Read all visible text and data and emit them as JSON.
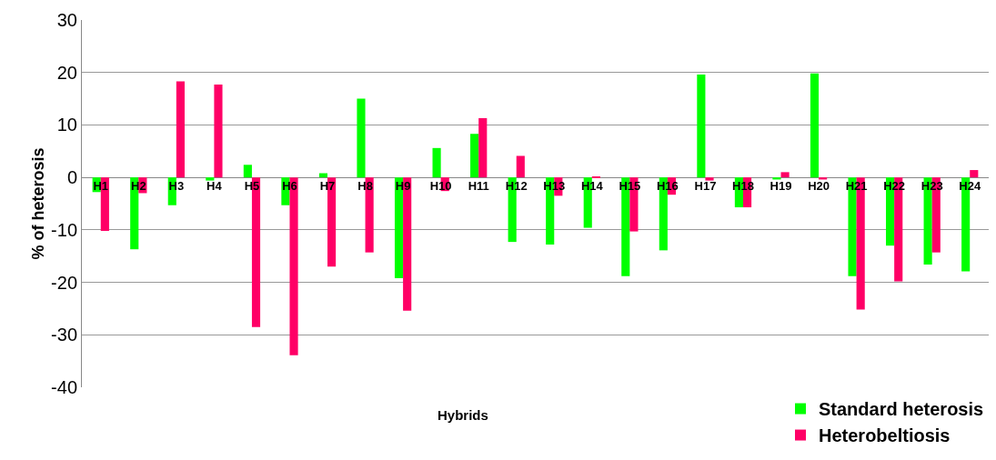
{
  "chart_data": {
    "type": "bar",
    "xlabel": "Hybrids",
    "ylabel": "% of heterosis",
    "categories": [
      "H1",
      "H2",
      "H3",
      "H4",
      "H5",
      "H6",
      "H7",
      "H8",
      "H9",
      "H10",
      "H11",
      "H12",
      "H13",
      "H14",
      "H15",
      "H16",
      "H17",
      "H18",
      "H19",
      "H20",
      "H21",
      "H22",
      "H23",
      "H24"
    ],
    "series": [
      {
        "name": "Standard heterosis",
        "color": "#00ff00",
        "values": [
          -2.8,
          -13.7,
          -5.3,
          -0.6,
          2.4,
          -5.3,
          0.8,
          15.0,
          -19.2,
          5.6,
          8.3,
          -12.3,
          -12.8,
          -9.6,
          -18.8,
          -13.9,
          19.6,
          -5.7,
          -0.4,
          19.8,
          -18.8,
          -13.0,
          -16.6,
          -17.9
        ]
      },
      {
        "name": "Heterobeltiosis",
        "color": "#ff0066",
        "values": [
          -10.2,
          -3.0,
          18.3,
          17.7,
          -28.5,
          -33.9,
          -17.0,
          -14.3,
          -25.4,
          -2.6,
          11.3,
          4.1,
          -3.5,
          0.2,
          -10.3,
          -3.3,
          -0.6,
          -5.7,
          1.0,
          -0.4,
          -25.2,
          -19.8,
          -14.3,
          1.4
        ]
      }
    ],
    "ylim": [
      -40,
      30
    ],
    "yticks": [
      -40,
      -30,
      -20,
      -10,
      0,
      10,
      20,
      30
    ],
    "grid": "y",
    "legend": "bottom right"
  }
}
